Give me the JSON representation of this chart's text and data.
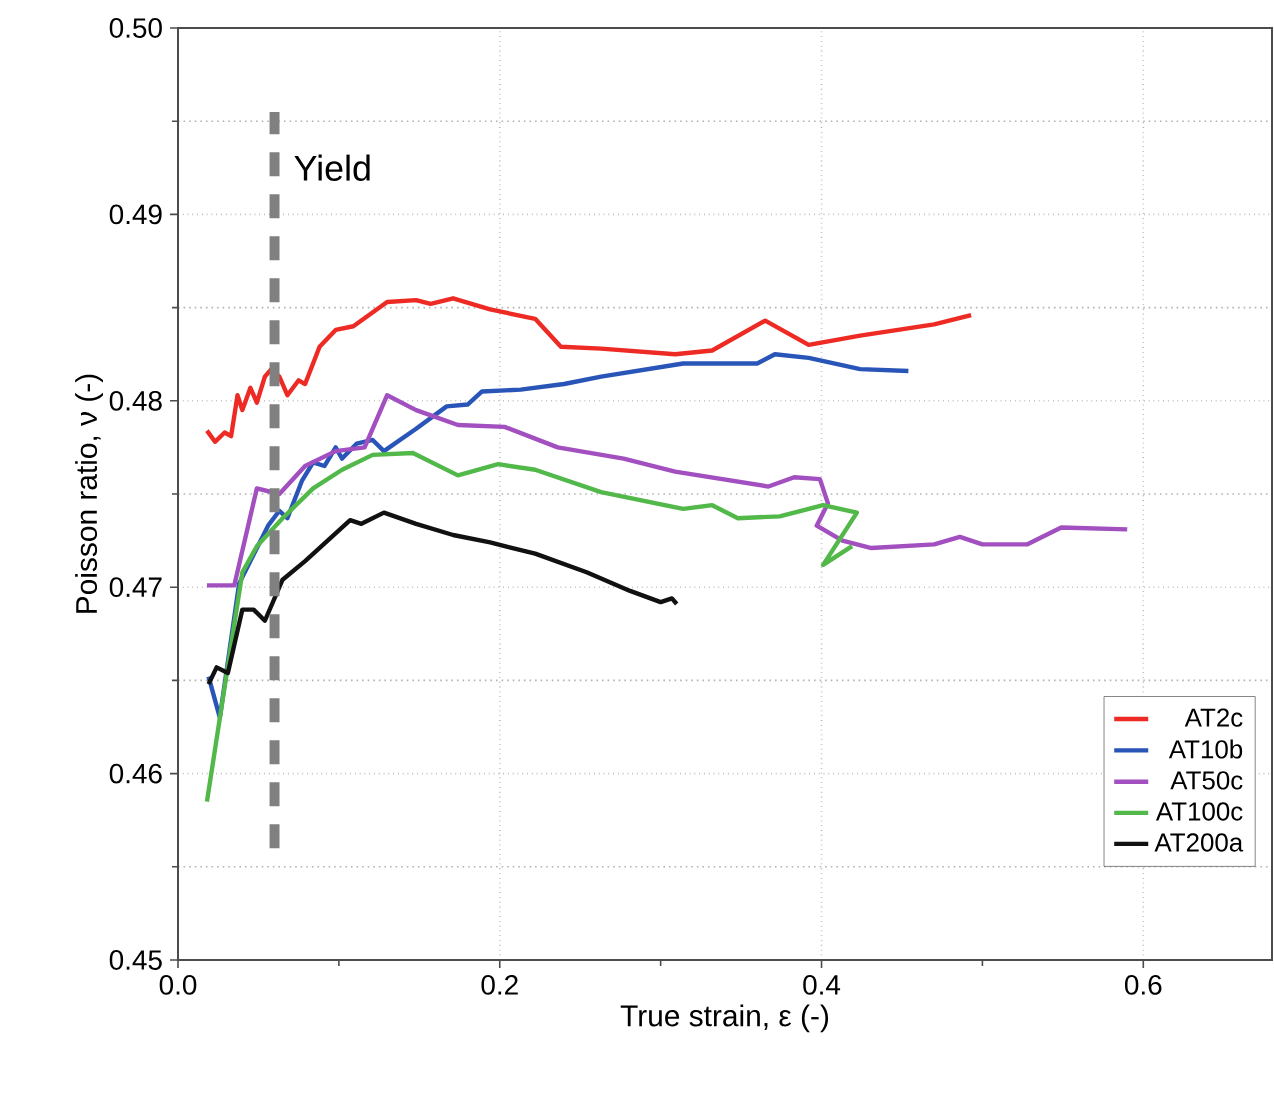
{
  "chart_data": {
    "type": "line",
    "xlabel": "True strain, ε (-)",
    "ylabel": "Poisson ratio, ν (-)",
    "xlim": [
      0,
      0.68
    ],
    "ylim": [
      0.45,
      0.5
    ],
    "xticks": [
      {
        "value": 0,
        "label": "0.0"
      },
      {
        "value": 0.2,
        "label": "0.2"
      },
      {
        "value": 0.4,
        "label": "0.4"
      },
      {
        "value": 0.6,
        "label": "0.6"
      }
    ],
    "yticks": [
      {
        "value": 0.45,
        "label": "0.45"
      },
      {
        "value": 0.46,
        "label": "0.46"
      },
      {
        "value": 0.47,
        "label": "0.47"
      },
      {
        "value": 0.48,
        "label": "0.48"
      },
      {
        "value": 0.49,
        "label": "0.49"
      },
      {
        "value": 0.5,
        "label": "0.50"
      }
    ],
    "grid": true,
    "legend": "bottom right",
    "marker": "none",
    "line_style": "solid",
    "ref_lines": [
      {
        "axis": "x",
        "value": 0.06,
        "label": "Yield",
        "color": "#808080",
        "line_style": "dashed"
      }
    ],
    "series": [
      {
        "name": "AT2c",
        "color": "#ee2a24",
        "x": [
          0.018,
          0.023,
          0.029,
          0.033,
          0.037,
          0.04,
          0.045,
          0.049,
          0.054,
          0.058,
          0.063,
          0.068,
          0.075,
          0.079,
          0.088,
          0.098,
          0.109,
          0.13,
          0.148,
          0.157,
          0.171,
          0.194,
          0.222,
          0.238,
          0.263,
          0.309,
          0.332,
          0.365,
          0.392,
          0.424,
          0.47,
          0.493
        ],
        "values": [
          0.4784,
          0.4778,
          0.4783,
          0.4781,
          0.4803,
          0.4795,
          0.4807,
          0.4799,
          0.4813,
          0.4817,
          0.4813,
          0.4803,
          0.4811,
          0.4809,
          0.4829,
          0.4838,
          0.484,
          0.4853,
          0.4854,
          0.4852,
          0.4855,
          0.4849,
          0.4844,
          0.4829,
          0.4828,
          0.4825,
          0.4827,
          0.4843,
          0.483,
          0.4835,
          0.4841,
          0.4846
        ]
      },
      {
        "name": "AT10b",
        "color": "#2a55b8",
        "x": [
          0.019,
          0.026,
          0.038,
          0.056,
          0.063,
          0.068,
          0.077,
          0.084,
          0.091,
          0.098,
          0.102,
          0.111,
          0.121,
          0.128,
          0.148,
          0.167,
          0.18,
          0.189,
          0.213,
          0.24,
          0.263,
          0.314,
          0.36,
          0.371,
          0.392,
          0.424,
          0.454
        ],
        "values": [
          0.4652,
          0.463,
          0.4702,
          0.4733,
          0.4741,
          0.4737,
          0.4757,
          0.4767,
          0.4765,
          0.4775,
          0.4769,
          0.4777,
          0.4779,
          0.4773,
          0.4785,
          0.4797,
          0.4798,
          0.4805,
          0.4806,
          0.4809,
          0.4813,
          0.482,
          0.482,
          0.4825,
          0.4823,
          0.4817,
          0.4816
        ]
      },
      {
        "name": "AT50c",
        "color": "#a24fc0",
        "x": [
          0.018,
          0.035,
          0.049,
          0.063,
          0.079,
          0.098,
          0.116,
          0.13,
          0.148,
          0.174,
          0.203,
          0.236,
          0.277,
          0.309,
          0.367,
          0.383,
          0.399,
          0.404,
          0.397,
          0.413,
          0.431,
          0.47,
          0.486,
          0.5,
          0.528,
          0.549,
          0.59
        ],
        "values": [
          0.4701,
          0.4701,
          0.4753,
          0.475,
          0.4765,
          0.4773,
          0.4775,
          0.4803,
          0.4795,
          0.4787,
          0.4786,
          0.4775,
          0.4769,
          0.4762,
          0.4754,
          0.4759,
          0.4758,
          0.4745,
          0.4733,
          0.4725,
          0.4721,
          0.4723,
          0.4727,
          0.4723,
          0.4723,
          0.4732,
          0.4731
        ]
      },
      {
        "name": "AT100c",
        "color": "#52b84a",
        "x": [
          0.018,
          0.04,
          0.049,
          0.065,
          0.084,
          0.102,
          0.121,
          0.146,
          0.174,
          0.199,
          0.222,
          0.263,
          0.314,
          0.332,
          0.348,
          0.374,
          0.401,
          0.422,
          0.401,
          0.419
        ],
        "values": [
          0.4585,
          0.4708,
          0.4722,
          0.4737,
          0.4753,
          0.4763,
          0.4771,
          0.4772,
          0.476,
          0.4766,
          0.4763,
          0.4751,
          0.4742,
          0.4744,
          0.4737,
          0.4738,
          0.4744,
          0.474,
          0.4712,
          0.4722
        ]
      },
      {
        "name": "AT200a",
        "color": "#111111",
        "x": [
          0.019,
          0.024,
          0.031,
          0.04,
          0.047,
          0.054,
          0.065,
          0.079,
          0.107,
          0.114,
          0.128,
          0.148,
          0.171,
          0.194,
          0.222,
          0.254,
          0.281,
          0.3,
          0.307,
          0.31
        ],
        "values": [
          0.4648,
          0.4657,
          0.4654,
          0.4688,
          0.4688,
          0.4682,
          0.4704,
          0.4714,
          0.4736,
          0.4734,
          0.474,
          0.4734,
          0.4728,
          0.4724,
          0.4718,
          0.4708,
          0.4698,
          0.4692,
          0.4694,
          0.4691
        ]
      }
    ]
  }
}
